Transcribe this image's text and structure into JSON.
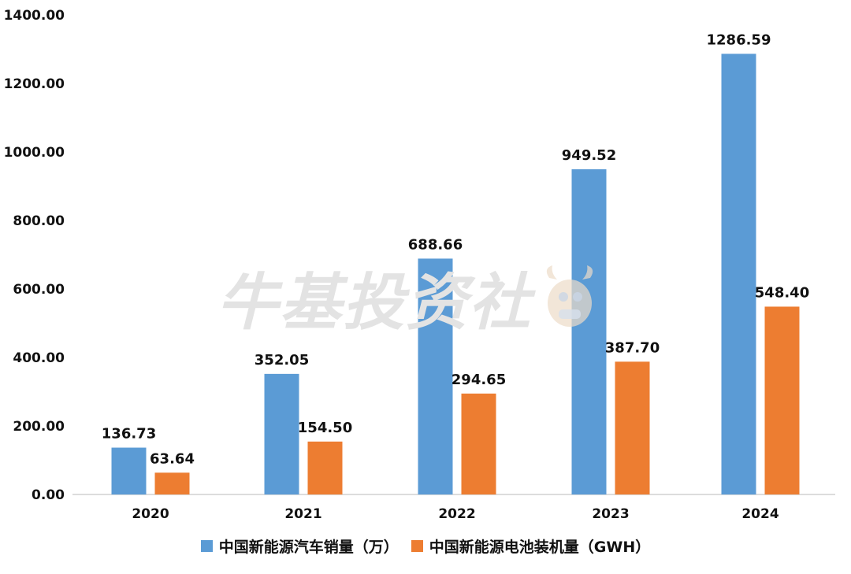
{
  "chart_data": {
    "type": "bar",
    "categories": [
      "2020",
      "2021",
      "2022",
      "2023",
      "2024"
    ],
    "series": [
      {
        "name": "中国新能源汽车销量（万）",
        "color": "#5b9bd5",
        "values": [
          136.73,
          352.05,
          688.66,
          949.52,
          1286.59
        ],
        "labels": [
          "136.73",
          "352.05",
          "688.66",
          "949.52",
          "1286.59"
        ]
      },
      {
        "name": "中国新能源电池装机量（GWH）",
        "color": "#ed7d31",
        "values": [
          63.64,
          154.5,
          294.65,
          387.7,
          548.4
        ],
        "labels": [
          "63.64",
          "154.50",
          "294.65",
          "387.70",
          "548.40"
        ]
      }
    ],
    "yticks": [
      "0.00",
      "200.00",
      "400.00",
      "600.00",
      "800.00",
      "1000.00",
      "1200.00",
      "1400.00"
    ],
    "ylim": [
      0,
      1400
    ],
    "grid": false,
    "legend_position": "bottom"
  },
  "watermark": {
    "text": "牛基投资社",
    "icon": "bull-mascot-icon"
  }
}
